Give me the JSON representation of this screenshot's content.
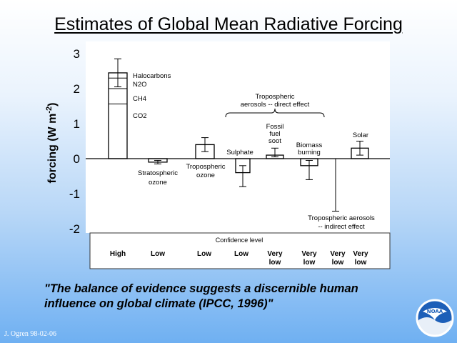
{
  "title": "Estimates of Global Mean Radiative Forcing",
  "quote": {
    "line1": "\"The balance of evidence suggests a discernible human",
    "line2": "influence on global climate (IPCC, 1996)\""
  },
  "credit": "J. Ogren 98-02-06",
  "logo_text": "NOAA",
  "chart_data": {
    "type": "bar",
    "ylabel": "forcing (W m-2)",
    "ylim": [
      -2,
      3
    ],
    "yticks": [
      "3",
      "2",
      "1",
      "0",
      "-1",
      "-2"
    ],
    "ytick_values": [
      3,
      2,
      1,
      0,
      -1,
      -2
    ],
    "confidence_header": "Confidence level",
    "confidence_levels": [
      "High",
      "Low",
      "Low",
      "Low",
      "Very low",
      "Very low",
      "Very low",
      "Very low"
    ],
    "bars": [
      {
        "value": 2.45,
        "err_low": 2.05,
        "err_high": 2.85,
        "segments": [
          1.56,
          2.0,
          2.3
        ]
      },
      {
        "value": -0.1,
        "err_low": -0.15,
        "err_high": -0.05
      },
      {
        "value": 0.4,
        "err_low": 0.2,
        "err_high": 0.6
      },
      {
        "value": -0.4,
        "err_low": -0.8,
        "err_high": -0.2
      },
      {
        "value": 0.1,
        "err_low": 0.05,
        "err_high": 0.3
      },
      {
        "value": -0.2,
        "err_low": -0.6,
        "err_high": -0.05
      },
      {
        "value": 0.0,
        "err_low": -1.5,
        "err_high": 0.0
      },
      {
        "value": 0.3,
        "err_low": 0.1,
        "err_high": 0.5
      }
    ],
    "annotations": {
      "halocarbons": "Halocarbons",
      "n2o": "N2O",
      "ch4": "CH4",
      "co2": "CO2",
      "aerosols_direct_1": "Tropospheric",
      "aerosols_direct_2": "aerosols -- direct effect",
      "fossil_1": "Fossil",
      "fossil_2": "fuel",
      "fossil_3": "soot",
      "sulphate": "Sulphate",
      "biomass_1": "Biomass",
      "biomass_2": "burning",
      "solar": "Solar",
      "strat_1": "Stratospheric",
      "strat_2": "ozone",
      "trop_1": "Tropospheric",
      "trop_2": "ozone",
      "indirect_1": "Tropospheric aerosols",
      "indirect_2": "-- indirect effect"
    }
  }
}
